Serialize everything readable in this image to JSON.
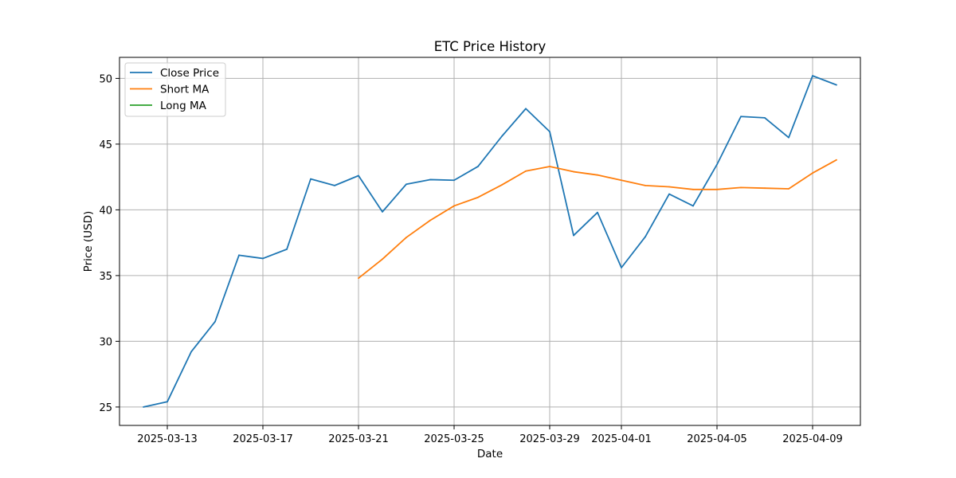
{
  "chart_data": {
    "type": "line",
    "title": "ETC Price History",
    "xlabel": "Date",
    "ylabel": "Price (USD)",
    "x_range": [
      "2025-03-11",
      "2025-04-11"
    ],
    "ylim": [
      23.6,
      51.6
    ],
    "y_ticks": [
      25,
      30,
      35,
      40,
      45,
      50
    ],
    "x_ticks": [
      "2025-03-13",
      "2025-03-17",
      "2025-03-21",
      "2025-03-25",
      "2025-03-29",
      "2025-04-01",
      "2025-04-05",
      "2025-04-09"
    ],
    "grid": true,
    "legend_position": "top-left",
    "colors": {
      "close": "#1f77b4",
      "short": "#ff7f0e",
      "long": "#2ca02c"
    },
    "series": [
      {
        "name": "Close Price",
        "color": "#1f77b4",
        "points": [
          [
            "2025-03-12",
            25.0
          ],
          [
            "2025-03-13",
            25.4
          ],
          [
            "2025-03-14",
            29.2
          ],
          [
            "2025-03-15",
            31.5
          ],
          [
            "2025-03-16",
            36.55
          ],
          [
            "2025-03-17",
            36.3
          ],
          [
            "2025-03-18",
            37.0
          ],
          [
            "2025-03-19",
            42.35
          ],
          [
            "2025-03-20",
            41.85
          ],
          [
            "2025-03-21",
            42.6
          ],
          [
            "2025-03-22",
            39.85
          ],
          [
            "2025-03-23",
            41.95
          ],
          [
            "2025-03-24",
            42.3
          ],
          [
            "2025-03-25",
            42.25
          ],
          [
            "2025-03-26",
            43.3
          ],
          [
            "2025-03-27",
            45.6
          ],
          [
            "2025-03-28",
            47.7
          ],
          [
            "2025-03-29",
            45.95
          ],
          [
            "2025-03-30",
            38.05
          ],
          [
            "2025-03-31",
            39.8
          ],
          [
            "2025-04-01",
            35.6
          ],
          [
            "2025-04-02",
            37.95
          ],
          [
            "2025-04-03",
            41.2
          ],
          [
            "2025-04-04",
            40.3
          ],
          [
            "2025-04-05",
            43.45
          ],
          [
            "2025-04-06",
            47.1
          ],
          [
            "2025-04-07",
            47.0
          ],
          [
            "2025-04-08",
            45.5
          ],
          [
            "2025-04-09",
            50.2
          ],
          [
            "2025-04-10",
            49.5
          ]
        ]
      },
      {
        "name": "Short MA",
        "color": "#ff7f0e",
        "points": [
          [
            "2025-03-21",
            34.8
          ],
          [
            "2025-03-22",
            36.25
          ],
          [
            "2025-03-23",
            37.9
          ],
          [
            "2025-03-24",
            39.2
          ],
          [
            "2025-03-25",
            40.3
          ],
          [
            "2025-03-26",
            40.95
          ],
          [
            "2025-03-27",
            41.9
          ],
          [
            "2025-03-28",
            42.95
          ],
          [
            "2025-03-29",
            43.3
          ],
          [
            "2025-03-30",
            42.9
          ],
          [
            "2025-03-31",
            42.65
          ],
          [
            "2025-04-01",
            42.25
          ],
          [
            "2025-04-02",
            41.85
          ],
          [
            "2025-04-03",
            41.75
          ],
          [
            "2025-04-04",
            41.55
          ],
          [
            "2025-04-05",
            41.55
          ],
          [
            "2025-04-06",
            41.7
          ],
          [
            "2025-04-07",
            41.65
          ],
          [
            "2025-04-08",
            41.6
          ],
          [
            "2025-04-09",
            42.8
          ],
          [
            "2025-04-10",
            43.8
          ]
        ]
      },
      {
        "name": "Long MA",
        "color": "#2ca02c",
        "points": []
      }
    ]
  }
}
